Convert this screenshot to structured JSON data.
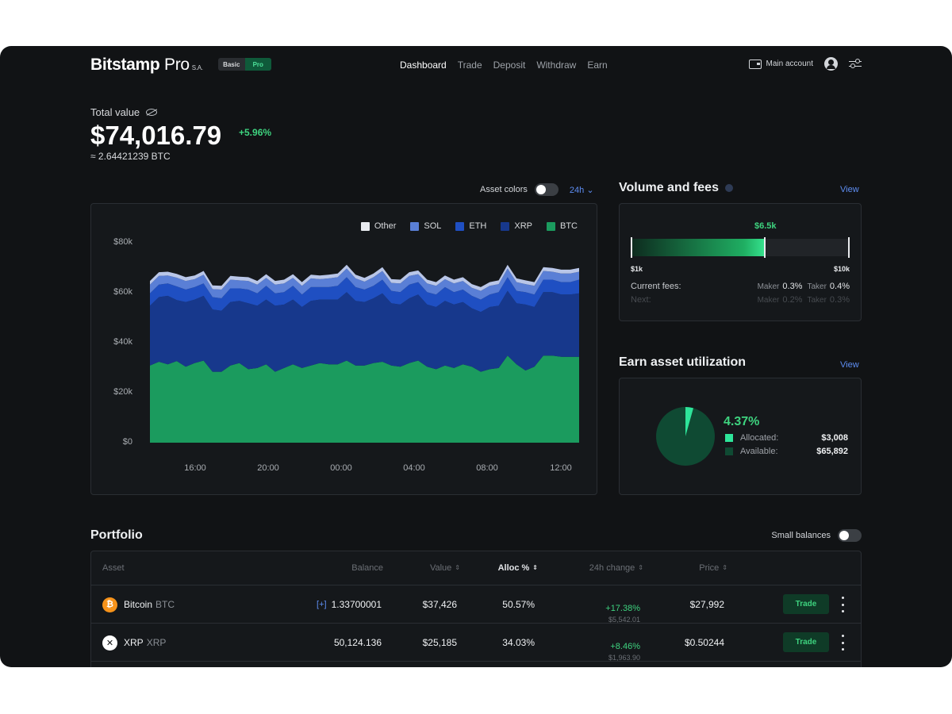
{
  "brand": {
    "name": "Bitstamp",
    "product": " Pro",
    "suffix": "S.A."
  },
  "mode_switch": {
    "basic": "Basic",
    "pro": "Pro",
    "active": "Pro"
  },
  "nav": {
    "items": [
      "Dashboard",
      "Trade",
      "Deposit",
      "Withdraw",
      "Earn"
    ],
    "active": "Dashboard"
  },
  "account": {
    "label": "Main account",
    "icons": [
      "wallet-icon",
      "user-icon",
      "settings-sliders-icon"
    ]
  },
  "total": {
    "label": "Total value",
    "amount": "$74,016.79",
    "change": "+5.96%",
    "btc": "≈ 2.64421239 BTC"
  },
  "chart_controls": {
    "asset_colors_label": "Asset colors",
    "asset_colors_on": false,
    "range": "24h"
  },
  "chart_data": {
    "type": "area",
    "stacked": true,
    "x": [
      "13:00",
      "13:30",
      "14:00",
      "14:30",
      "15:00",
      "15:30",
      "16:00",
      "16:30",
      "17:00",
      "17:30",
      "18:00",
      "18:30",
      "19:00",
      "19:30",
      "20:00",
      "20:30",
      "21:00",
      "21:30",
      "22:00",
      "22:30",
      "23:00",
      "23:30",
      "00:00",
      "00:30",
      "01:00",
      "01:30",
      "02:00",
      "02:30",
      "03:00",
      "03:30",
      "04:00",
      "04:30",
      "05:00",
      "05:30",
      "06:00",
      "06:30",
      "07:00",
      "07:30",
      "08:00",
      "08:30",
      "09:00",
      "09:30",
      "10:00",
      "10:30",
      "11:00",
      "11:30",
      "12:00",
      "12:30",
      "13:00"
    ],
    "x_ticks": [
      "16:00",
      "20:00",
      "00:00",
      "04:00",
      "08:00",
      "12:00"
    ],
    "y_ticks": [
      "$0",
      "$20k",
      "$40k",
      "$60k",
      "$80k"
    ],
    "ylim": [
      0,
      80000
    ],
    "series": [
      {
        "name": "BTC",
        "color": "#1b9b5e",
        "values": [
          31000,
          32500,
          31500,
          32800,
          30500,
          32000,
          33000,
          28500,
          28500,
          31000,
          32000,
          29500,
          30000,
          31500,
          28500,
          30000,
          31500,
          30000,
          31000,
          32000,
          31500,
          31500,
          33000,
          31000,
          31000,
          32000,
          32500,
          31000,
          30500,
          32000,
          33000,
          30500,
          29500,
          31000,
          30000,
          31500,
          30500,
          28500,
          29500,
          30000,
          35000,
          31500,
          29000,
          30500,
          35000,
          35000,
          34500,
          34500,
          34500
        ]
      },
      {
        "name": "XRP",
        "color": "#17388c",
        "values": [
          24000,
          26000,
          27500,
          24500,
          26000,
          25500,
          26000,
          25000,
          24500,
          25500,
          25000,
          26500,
          25000,
          26000,
          26500,
          25500,
          26000,
          24500,
          26000,
          25500,
          26000,
          26000,
          27500,
          26000,
          25500,
          26000,
          27500,
          25000,
          25000,
          26000,
          26500,
          25000,
          25000,
          26000,
          25500,
          25000,
          23500,
          24000,
          25000,
          25000,
          26000,
          24500,
          26500,
          24000,
          25500,
          25500,
          25000,
          25000,
          25500
        ]
      },
      {
        "name": "ETH",
        "color": "#1f4fc2",
        "values": [
          5000,
          5000,
          5000,
          5500,
          5000,
          5000,
          5000,
          5000,
          5000,
          5500,
          5000,
          5500,
          5000,
          5500,
          5000,
          5000,
          5500,
          5000,
          5500,
          5000,
          5000,
          5500,
          6000,
          5500,
          5000,
          5000,
          5500,
          5000,
          5000,
          5500,
          5000,
          5000,
          5000,
          5500,
          5000,
          5000,
          5000,
          5000,
          5000,
          5500,
          5500,
          5000,
          5000,
          5000,
          5000,
          5000,
          5000,
          5000,
          5500
        ]
      },
      {
        "name": "SOL",
        "color": "#5a7fd6",
        "values": [
          3500,
          3500,
          3200,
          3500,
          3500,
          3200,
          3500,
          3200,
          3500,
          3500,
          3200,
          3500,
          3500,
          3200,
          3500,
          3500,
          3200,
          3500,
          3500,
          3200,
          3500,
          3500,
          3500,
          3500,
          3200,
          3500,
          3500,
          3200,
          3500,
          3500,
          3200,
          3500,
          3500,
          3200,
          3500,
          3500,
          3200,
          3500,
          3500,
          3200,
          3500,
          3500,
          3200,
          3500,
          3500,
          3200,
          3500,
          3500,
          3200
        ]
      },
      {
        "name": "Other",
        "color": "#b9c6e8",
        "values": [
          1500,
          1500,
          1500,
          1500,
          1500,
          1500,
          1500,
          1500,
          1500,
          1500,
          1500,
          1500,
          1500,
          1500,
          1500,
          1500,
          1500,
          1500,
          1500,
          1500,
          1500,
          1500,
          1500,
          1500,
          1500,
          1500,
          1500,
          1500,
          1500,
          1500,
          1500,
          1500,
          1500,
          1500,
          1500,
          1500,
          1500,
          1500,
          1500,
          1500,
          1500,
          1500,
          1500,
          1500,
          1500,
          1500,
          1500,
          1500,
          1500
        ]
      }
    ],
    "legend": [
      "Other",
      "SOL",
      "ETH",
      "XRP",
      "BTC"
    ],
    "legend_position": "top-right",
    "grid": false
  },
  "volume": {
    "title": "Volume and fees",
    "view_label": "View",
    "current": "$6.5k",
    "min": "$1k",
    "max": "$10k",
    "fill_fraction": 0.61,
    "current_fees": {
      "label": "Current fees:",
      "maker_label": "Maker",
      "maker": "0.3%",
      "taker_label": "Taker",
      "taker": "0.4%"
    },
    "next_fees": {
      "label": "Next:",
      "maker_label": "Maker",
      "maker": "0.2%",
      "taker_label": "Taker",
      "taker": "0.3%"
    }
  },
  "earn": {
    "title": "Earn asset utilization",
    "view_label": "View",
    "percent": "4.37%",
    "percent_value": 4.37,
    "allocated_label": "Allocated:",
    "allocated": "$3,008",
    "available_label": "Available:",
    "available": "$65,892",
    "allocated_color": "#2ee59a",
    "available_color": "#0f4a33"
  },
  "portfolio": {
    "title": "Portfolio",
    "small_balances_label": "Small balances",
    "small_balances_on": false,
    "columns": [
      "Asset",
      "Balance",
      "Value",
      "Alloc %",
      "24h change",
      "Price"
    ],
    "rows": [
      {
        "name": "Bitcoin",
        "ticker": "BTC",
        "icon": "bitcoin-icon",
        "icon_color": "#f7931a",
        "icon_glyph": "₿",
        "expand": "[+]",
        "balance": "1.33700001",
        "value": "$37,426",
        "alloc": "50.57%",
        "change_pct": "+17.38%",
        "change_amt": "$5,542.01",
        "price": "$27,992",
        "action": "Trade"
      },
      {
        "name": "XRP",
        "ticker": "XRP",
        "icon": "xrp-icon",
        "icon_color": "#ffffff",
        "icon_glyph": "✕",
        "expand": "",
        "balance": "50,124.136",
        "value": "$25,185",
        "alloc": "34.03%",
        "change_pct": "+8.46%",
        "change_amt": "$1,963.90",
        "price": "$0.50244",
        "action": "Trade"
      }
    ]
  }
}
